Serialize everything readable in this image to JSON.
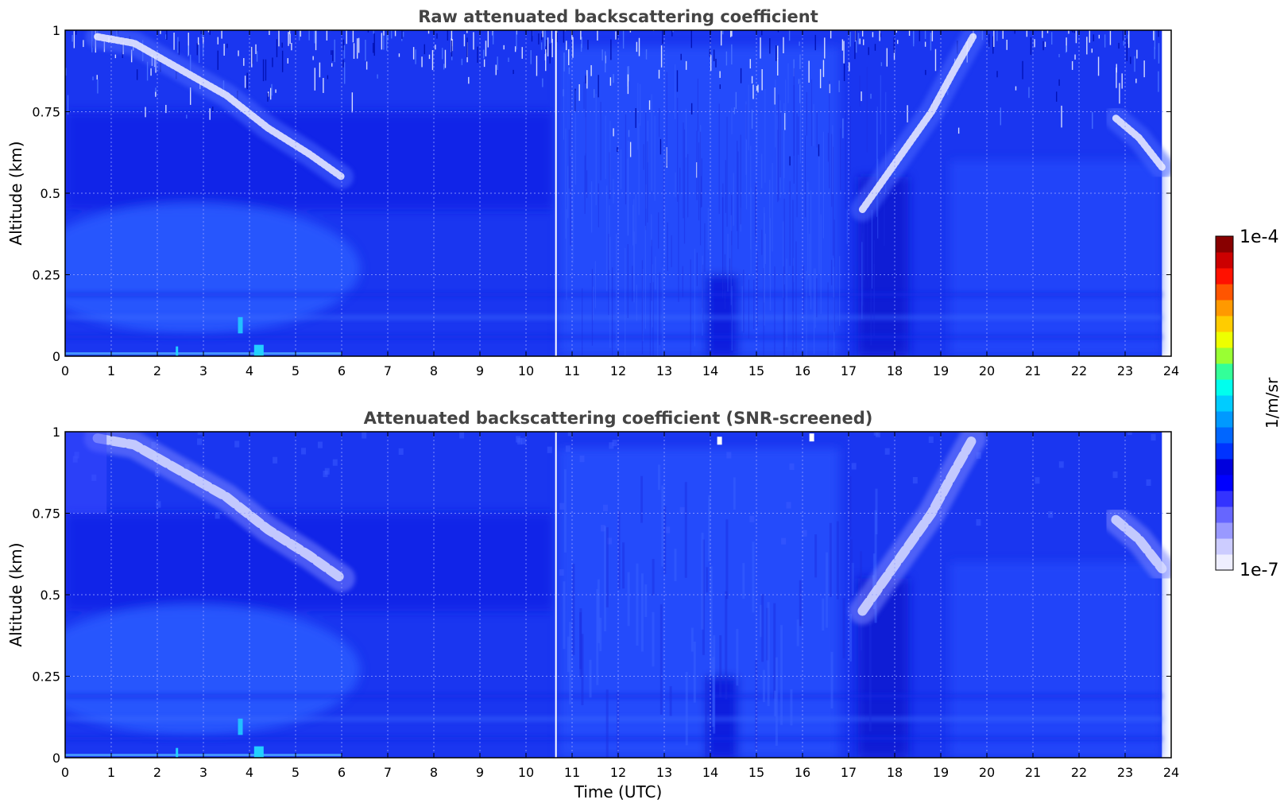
{
  "chart_data": [
    {
      "type": "heatmap",
      "title": "Raw attenuated backscattering coefficient",
      "xlabel": "",
      "ylabel": "Altitude (km)",
      "xlim": [
        0,
        24
      ],
      "ylim": [
        0,
        1
      ],
      "x_ticks": [
        "0",
        "1",
        "2",
        "3",
        "4",
        "5",
        "6",
        "7",
        "8",
        "9",
        "10",
        "11",
        "12",
        "13",
        "14",
        "15",
        "16",
        "17",
        "18",
        "19",
        "20",
        "21",
        "22",
        "23",
        "24"
      ],
      "y_ticks": [
        "0",
        "0.25",
        "0.5",
        "0.75",
        "1"
      ],
      "grid": true,
      "data_end_time": 23.8,
      "gap_time": 10.65,
      "colorscale": "jet, logarithmic",
      "features": [
        {
          "name": "descending cloud layer",
          "path": [
            [
              0.7,
              0.98
            ],
            [
              1.5,
              0.96
            ],
            [
              2.5,
              0.88
            ],
            [
              3.5,
              0.8
            ],
            [
              4.4,
              0.7
            ],
            [
              5.3,
              0.62
            ],
            [
              6.0,
              0.55
            ]
          ],
          "level": "lowest"
        },
        {
          "name": "rising layer",
          "path": [
            [
              17.3,
              0.45
            ],
            [
              17.8,
              0.55
            ],
            [
              18.3,
              0.65
            ],
            [
              18.8,
              0.75
            ],
            [
              19.3,
              0.88
            ],
            [
              19.7,
              0.98
            ]
          ],
          "level": "lowest"
        },
        {
          "name": "late layer",
          "path": [
            [
              22.8,
              0.73
            ],
            [
              23.3,
              0.67
            ],
            [
              23.8,
              0.58
            ]
          ],
          "level": "lowest"
        },
        {
          "name": "aerosol boundary layer",
          "x_range": [
            0,
            6
          ],
          "altitude_range": [
            0.05,
            0.45
          ],
          "level": "low"
        },
        {
          "name": "near-surface enhancement",
          "x_range": [
            3.7,
            4.4
          ],
          "altitude_range": [
            0,
            0.1
          ],
          "level": "medium"
        }
      ]
    },
    {
      "type": "heatmap",
      "title": "Attenuated backscattering coefficient (SNR-screened)",
      "xlabel": "Time (UTC)",
      "ylabel": "Altitude (km)",
      "xlim": [
        0,
        24
      ],
      "ylim": [
        0,
        1
      ],
      "x_ticks": [
        "0",
        "1",
        "2",
        "3",
        "4",
        "5",
        "6",
        "7",
        "8",
        "9",
        "10",
        "11",
        "12",
        "13",
        "14",
        "15",
        "16",
        "17",
        "18",
        "19",
        "20",
        "21",
        "22",
        "23",
        "24"
      ],
      "y_ticks": [
        "0",
        "0.25",
        "0.5",
        "0.75",
        "1"
      ],
      "grid": true,
      "data_end_time": 23.8,
      "gap_time": 10.65,
      "colorscale": "jet, logarithmic",
      "screened_points": [
        [
          14.2,
          0.97
        ],
        [
          16.2,
          0.98
        ]
      ]
    }
  ],
  "colorbar": {
    "label": "1/m/sr",
    "max_label": "1e-4",
    "min_label": "1e-7",
    "scale": "log",
    "range": [
      1e-07,
      0.0001
    ],
    "colors": [
      "#eeeeff",
      "#ccccff",
      "#9999ff",
      "#6666ff",
      "#3333ff",
      "#0000ff",
      "#0000dd",
      "#0033ff",
      "#0066ff",
      "#0099ff",
      "#00ccff",
      "#00ffee",
      "#33ff99",
      "#99ff33",
      "#eeff00",
      "#ffcc00",
      "#ff9900",
      "#ff5500",
      "#ff1100",
      "#cc0000",
      "#880000"
    ]
  },
  "colors": {
    "background_blue": "#1a36f0",
    "axis": "#000000",
    "grid": "#9aa4ff",
    "title_gray": "#444444"
  }
}
